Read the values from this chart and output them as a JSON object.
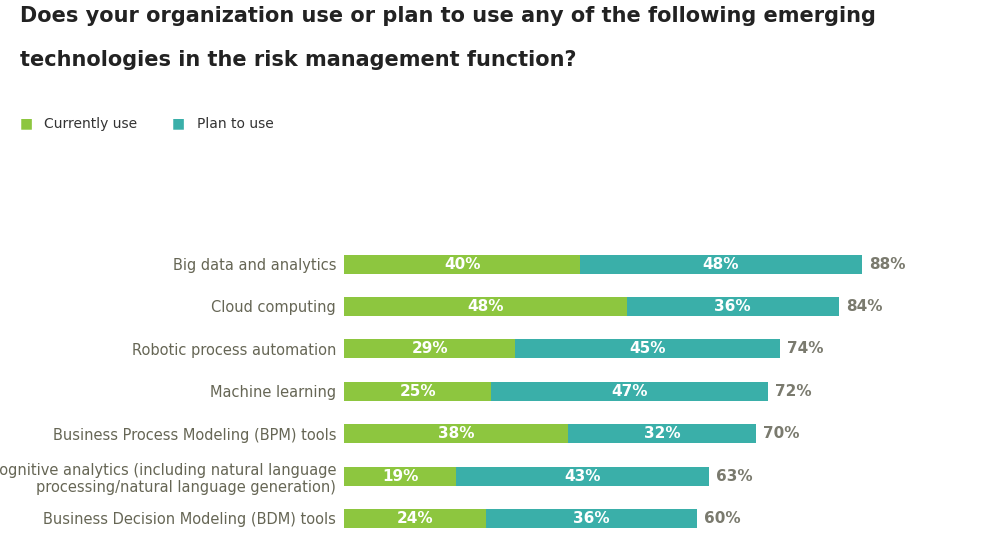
{
  "title_line1": "Does your organization use or plan to use any of the following emerging",
  "title_line2": "technologies in the risk management function?",
  "categories": [
    "Big data and analytics",
    "Cloud computing",
    "Robotic process automation",
    "Machine learning",
    "Business Process Modeling (BPM) tools",
    "Cognitive analytics (including natural language\nprocessing/natural language generation)",
    "Business Decision Modeling (BDM) tools"
  ],
  "currently_use": [
    40,
    48,
    29,
    25,
    38,
    19,
    24
  ],
  "plan_to_use": [
    48,
    36,
    45,
    47,
    32,
    43,
    36
  ],
  "totals": [
    88,
    84,
    74,
    72,
    70,
    63,
    60
  ],
  "color_currently": "#8dc63f",
  "color_plan": "#3aafa9",
  "color_total_text": "#7a7a6e",
  "background_color": "#ffffff",
  "legend_currently": "Currently use",
  "legend_plan": "Plan to use",
  "bar_label_color": "#ffffff",
  "bar_label_fontsize": 11,
  "total_label_fontsize": 11,
  "title_fontsize": 15,
  "category_fontsize": 10.5,
  "legend_fontsize": 10
}
